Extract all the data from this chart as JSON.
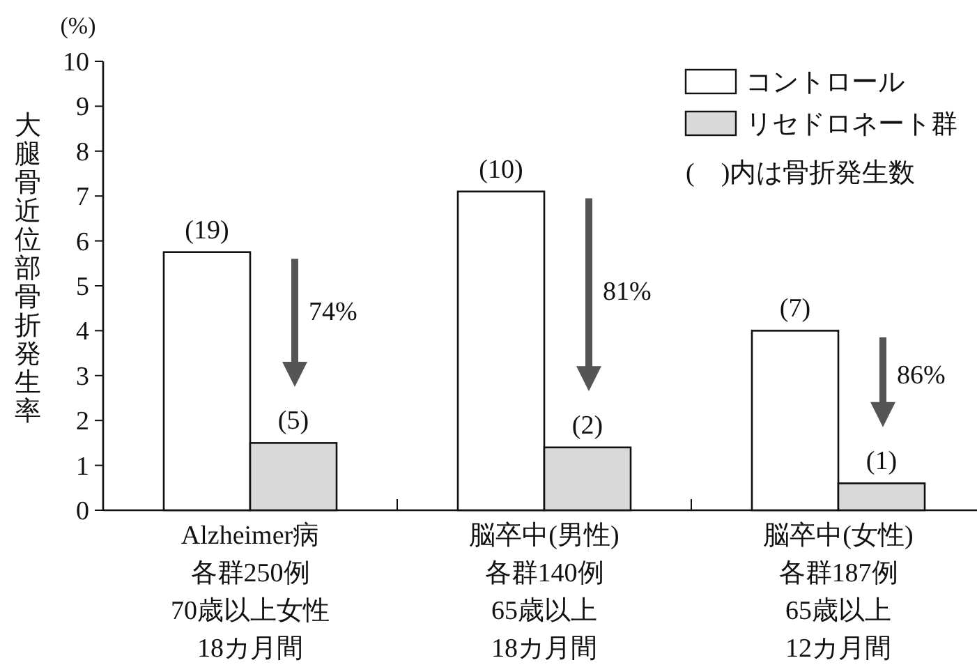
{
  "chart_data": {
    "type": "bar",
    "ylabel": "大腿骨近位部骨折発生率",
    "categories": [
      "Alzheimer病",
      "脳卒中(男性)",
      "脳卒中(女性)"
    ],
    "series": [
      {
        "name": "コントロール",
        "color": "#ffffff",
        "values": [
          5.75,
          7.1,
          4.0
        ]
      },
      {
        "name": "リセドロネート群",
        "color": "#d9d9d9",
        "values": [
          1.5,
          1.4,
          0.6
        ]
      }
    ],
    "ylim": [
      0,
      10
    ],
    "yticks": [
      0,
      1,
      2,
      3,
      4,
      5,
      6,
      7,
      8,
      9,
      10
    ],
    "legend": "top right",
    "annotations": [
      "(%)",
      "(　)内は骨折発生数",
      "各群250例",
      "70歳以上女性",
      "18カ月間",
      "各群140例",
      "65歳以上",
      "18カ月間",
      "各群187例",
      "65歳以上",
      "12カ月間",
      {
        "text": "(19)",
        "x": "Alzheimer病",
        "y": 5.75
      },
      {
        "text": "(5)",
        "x": "Alzheimer病",
        "y": 1.5
      },
      {
        "text": "(10)",
        "x": "脳卒中(男性)",
        "y": 7.1
      },
      {
        "text": "(2)",
        "x": "脳卒中(男性)",
        "y": 1.4
      },
      {
        "text": "(7)",
        "x": "脳卒中(女性)",
        "y": 4.0
      },
      {
        "text": "(1)",
        "x": "脳卒中(女性)",
        "y": 0.6
      },
      {
        "text": "74%",
        "x": "Alzheimer病",
        "y": 4.45
      },
      {
        "text": "81%",
        "x": "脳卒中(男性)",
        "y": 4.9
      },
      {
        "text": "86%",
        "x": "脳卒中(女性)",
        "y": 3.05
      }
    ]
  }
}
